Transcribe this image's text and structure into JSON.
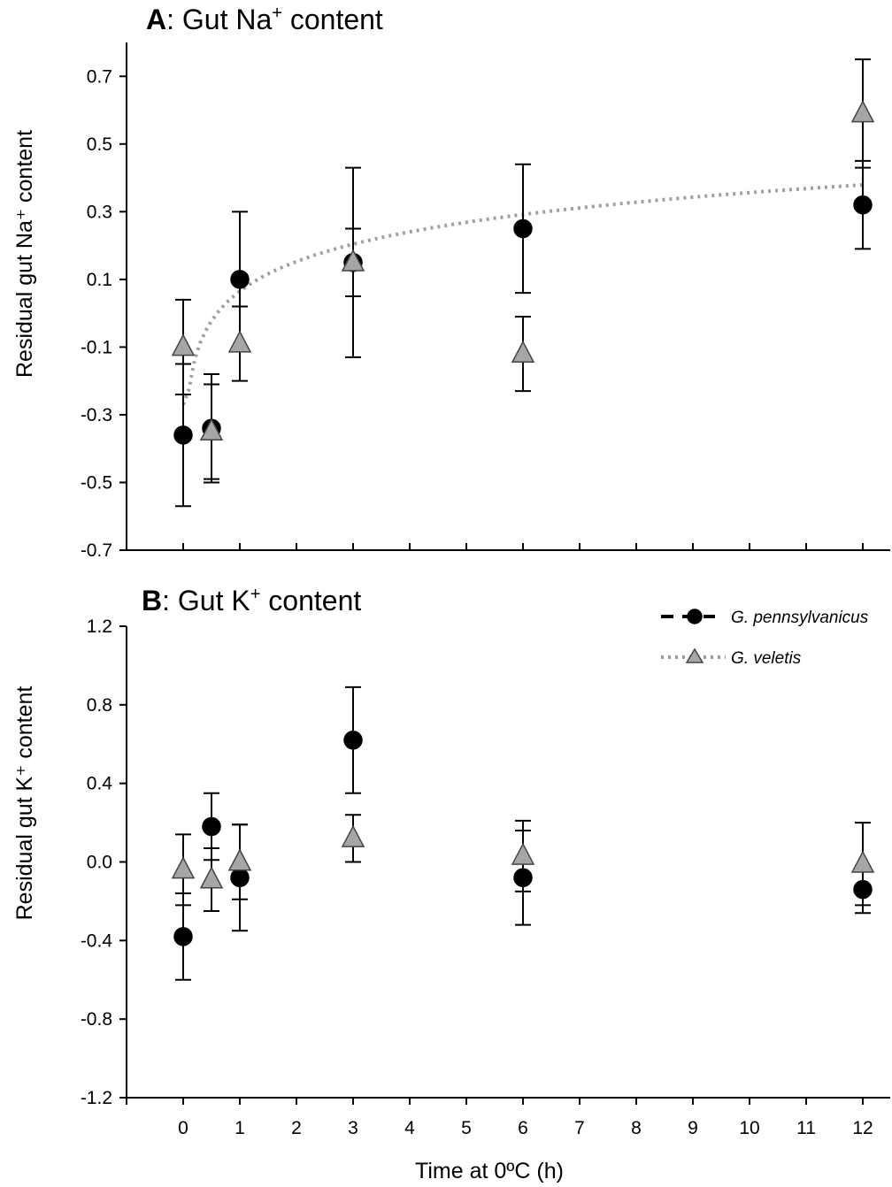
{
  "chart_data": [
    {
      "type": "scatter",
      "panel_letter": "A",
      "title": ": Gut Na",
      "title_ion_sup": "+",
      "title_suffix": " content",
      "ylabel": "Residual gut Na⁺ content",
      "xlabel": "",
      "ylim": [
        -0.7,
        0.8
      ],
      "yticks": [
        "0.7",
        "0.5",
        "0.3",
        "0.1",
        "-0.1",
        "-0.3",
        "-0.5",
        "-0.7"
      ],
      "ytick_values": [
        0.7,
        0.5,
        0.3,
        0.1,
        -0.1,
        -0.3,
        -0.5,
        -0.7
      ],
      "xlim": [
        -1,
        13
      ],
      "grid": false,
      "series": [
        {
          "name": "G. pennsylvanicus",
          "marker": "circle",
          "color": "#000000",
          "x": [
            0,
            0.5,
            1,
            3,
            6,
            12
          ],
          "y": [
            -0.36,
            -0.34,
            0.1,
            0.15,
            0.25,
            0.32
          ],
          "err": [
            0.21,
            0.16,
            0.2,
            0.1,
            0.19,
            0.13
          ]
        },
        {
          "name": "G. veletis",
          "marker": "triangle",
          "color": "#a6a6a6",
          "x": [
            0,
            0.5,
            1,
            3,
            6,
            12
          ],
          "y": [
            -0.1,
            -0.35,
            -0.09,
            0.15,
            -0.12,
            0.59
          ],
          "err": [
            0.14,
            0.14,
            0.11,
            0.28,
            0.11,
            0.16
          ]
        }
      ],
      "fit": {
        "series": "G. veletis",
        "style": "dotted",
        "a": 0.065,
        "b": 0.1265,
        "type": "log"
      }
    },
    {
      "type": "scatter",
      "panel_letter": "B",
      "title": ": Gut K",
      "title_ion_sup": "+",
      "title_suffix": " content",
      "ylabel": "Residual gut K⁺ content",
      "xlabel": "Time at 0ºC (h)",
      "ylim": [
        -1.2,
        1.2
      ],
      "yticks": [
        "1.2",
        "0.8",
        "0.4",
        "0.0",
        "-0.4",
        "-0.8",
        "-1.2"
      ],
      "ytick_values": [
        1.2,
        0.8,
        0.4,
        0.0,
        -0.4,
        -0.8,
        -1.2
      ],
      "xlim": [
        -1,
        13
      ],
      "xticks": [
        "0",
        "1",
        "2",
        "3",
        "4",
        "5",
        "6",
        "7",
        "8",
        "9",
        "10",
        "11",
        "12"
      ],
      "xtick_values": [
        0,
        1,
        2,
        3,
        4,
        5,
        6,
        7,
        8,
        9,
        10,
        11,
        12
      ],
      "grid": false,
      "legend_position": "top-right",
      "series": [
        {
          "name": "G. pennsylvanicus",
          "marker": "circle",
          "color": "#000000",
          "x": [
            0,
            0.5,
            1,
            3,
            6,
            12
          ],
          "y": [
            -0.38,
            0.18,
            -0.08,
            0.62,
            -0.08,
            -0.14
          ],
          "err": [
            0.22,
            0.17,
            0.27,
            0.27,
            0.24,
            0.12
          ]
        },
        {
          "name": "G. veletis",
          "marker": "triangle",
          "color": "#a6a6a6",
          "x": [
            0,
            0.5,
            1,
            3,
            6,
            12
          ],
          "y": [
            -0.04,
            -0.09,
            0.0,
            0.12,
            0.03,
            -0.01
          ],
          "err": [
            0.18,
            0.16,
            0.19,
            0.12,
            0.18,
            0.21
          ]
        }
      ]
    }
  ],
  "legend": {
    "items": [
      {
        "label": "G. pennsylvanicus",
        "line": "dashed",
        "marker": "circle"
      },
      {
        "label": "G. veletis",
        "line": "dotted",
        "marker": "triangle"
      }
    ]
  }
}
